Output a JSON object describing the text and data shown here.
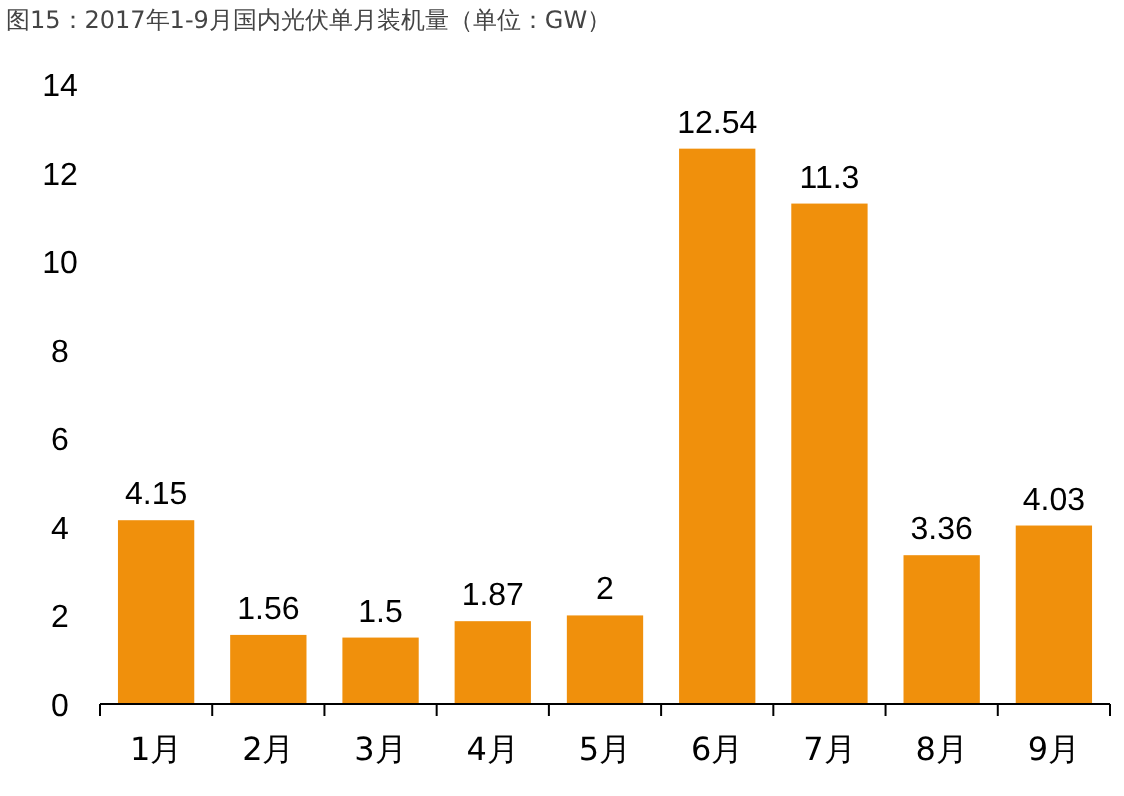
{
  "chart_data": {
    "type": "bar",
    "title": "图15：2017年1-9月国内光伏单月装机量（单位：GW）",
    "categories": [
      "1月",
      "2月",
      "3月",
      "4月",
      "5月",
      "6月",
      "7月",
      "8月",
      "9月"
    ],
    "values": [
      4.15,
      1.56,
      1.5,
      1.87,
      2,
      12.54,
      11.3,
      3.36,
      4.03
    ],
    "color": "#f0900c",
    "ylim": [
      0,
      14
    ],
    "yticks": [
      0,
      2,
      4,
      6,
      8,
      10,
      12,
      14
    ],
    "data_labels": true,
    "grid": false
  }
}
